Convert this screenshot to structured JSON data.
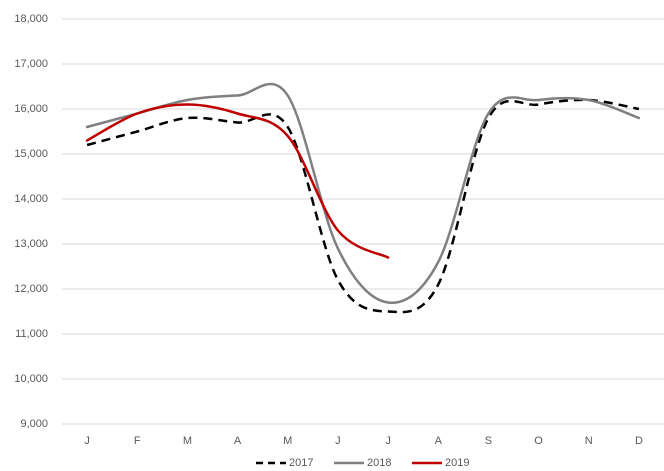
{
  "chart_data": {
    "type": "line",
    "categories": [
      "J",
      "F",
      "M",
      "A",
      "M",
      "J",
      "J",
      "A",
      "S",
      "O",
      "N",
      "D"
    ],
    "series": [
      {
        "name": "2017",
        "color": "#000000",
        "dashed": true,
        "values": [
          15200,
          15500,
          15800,
          15700,
          15600,
          12200,
          11500,
          12100,
          15800,
          16100,
          16200,
          16000
        ]
      },
      {
        "name": "2018",
        "color": "#808080",
        "dashed": false,
        "values": [
          15600,
          15900,
          16200,
          16300,
          16300,
          12900,
          11700,
          12600,
          15900,
          16200,
          16200,
          15800
        ]
      },
      {
        "name": "2019",
        "color": "#c00000",
        "dashed": false,
        "values": [
          15300,
          15900,
          16100,
          15900,
          15400,
          13300,
          12700,
          null,
          null,
          null,
          null,
          null
        ]
      }
    ],
    "ylim": [
      9000,
      18000
    ],
    "yticks": [
      {
        "value": 9000,
        "label": "9,000"
      },
      {
        "value": 10000,
        "label": "10,000"
      },
      {
        "value": 11000,
        "label": "11,000"
      },
      {
        "value": 12000,
        "label": "12,000"
      },
      {
        "value": 13000,
        "label": "13,000"
      },
      {
        "value": 14000,
        "label": "14,000"
      },
      {
        "value": 15000,
        "label": "15,000"
      },
      {
        "value": 16000,
        "label": "16,000"
      },
      {
        "value": 17000,
        "label": "17,000"
      },
      {
        "value": 18000,
        "label": "18,000"
      }
    ],
    "grid": true,
    "legend": "bottom"
  }
}
